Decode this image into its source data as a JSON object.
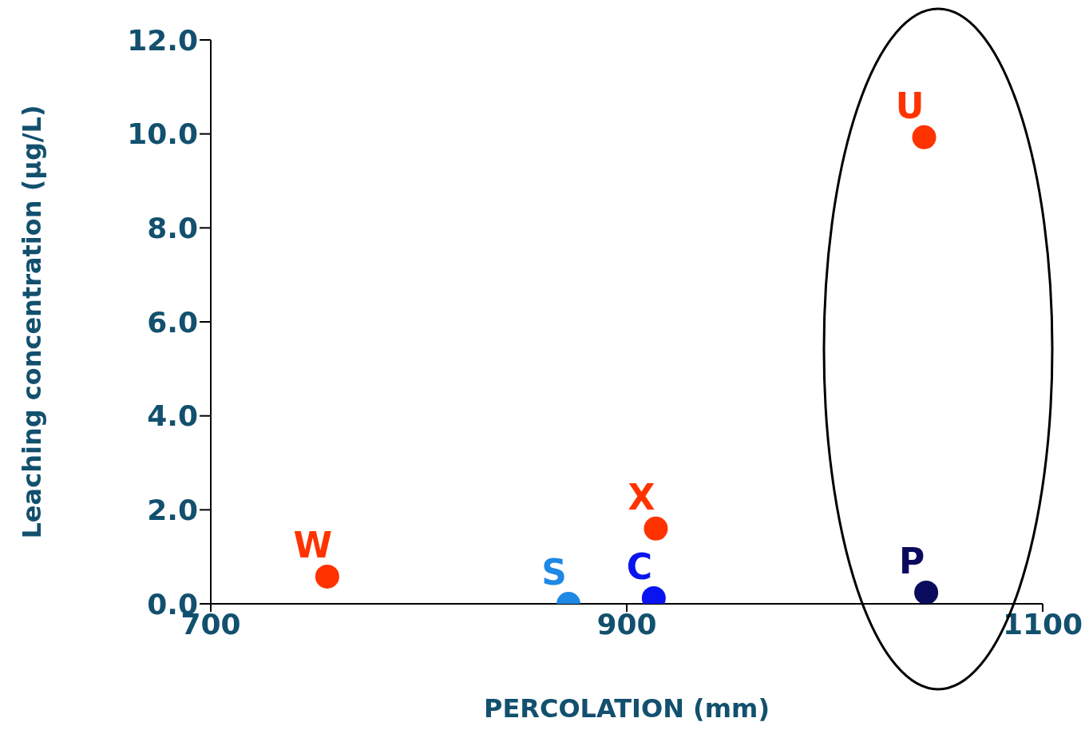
{
  "chart_data": {
    "type": "scatter",
    "xlabel": "PERCOLATION (mm)",
    "ylabel": "Leaching concentration (µg/L)",
    "xlim": [
      700,
      1100
    ],
    "xticks": [
      700,
      900,
      1100
    ],
    "ylim": [
      0,
      12
    ],
    "yticks": [
      {
        "value": 0,
        "label": "0.0"
      },
      {
        "value": 2,
        "label": "2.0"
      },
      {
        "value": 4,
        "label": "4.0"
      },
      {
        "value": 6,
        "label": "6.0"
      },
      {
        "value": 8,
        "label": "8.0"
      },
      {
        "value": 10,
        "label": "10.0"
      },
      {
        "value": 12,
        "label": "12.0"
      }
    ],
    "grid": false,
    "legend": false,
    "marker": "circle",
    "series": [
      {
        "name": "W",
        "color": "#ff3300",
        "x": [
          756
        ],
        "values": [
          0.58
        ]
      },
      {
        "name": "S",
        "color": "#1e88e5",
        "x": [
          872
        ],
        "values": [
          0.0
        ]
      },
      {
        "name": "C",
        "color": "#0a14f0",
        "x": [
          913
        ],
        "values": [
          0.12
        ]
      },
      {
        "name": "X",
        "color": "#ff3300",
        "x": [
          914
        ],
        "values": [
          1.6
        ]
      },
      {
        "name": "U",
        "color": "#ff3300",
        "x": [
          1043
        ],
        "values": [
          9.93
        ]
      },
      {
        "name": "P",
        "color": "#0b0b5e",
        "x": [
          1044
        ],
        "values": [
          0.24
        ]
      }
    ]
  }
}
